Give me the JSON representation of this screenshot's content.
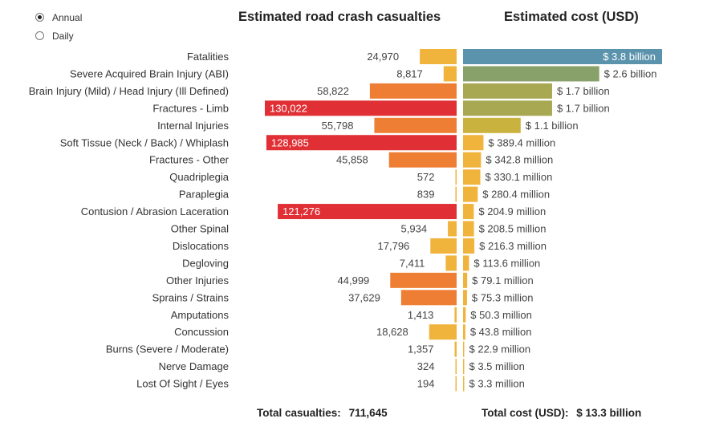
{
  "controls": {
    "period_options": [
      {
        "label": "Annual",
        "selected": true
      },
      {
        "label": "Daily",
        "selected": false
      }
    ]
  },
  "titles": {
    "casualties": "Estimated road crash casualties",
    "cost": "Estimated cost (USD)"
  },
  "totals": {
    "casualties_label": "Total casualties:",
    "casualties_value": "711,645",
    "cost_label": "Total cost (USD):",
    "cost_value": "$ 13.3 billion"
  },
  "colors": {
    "casualty_low": "#f0b33c",
    "casualty_mid": "#ee7e34",
    "casualty_high": "#e03035",
    "cost_top": "#5b93ad",
    "cost_second": "#88a06a",
    "cost_third": "#a8a752",
    "cost_mid": "#c9b23e",
    "cost_low": "#f0b33c"
  },
  "chart_data": [
    {
      "type": "bar",
      "orientation": "horizontal",
      "title": "Estimated road crash casualties",
      "categories": [
        "Fatalities",
        "Severe Acquired Brain Injury (ABI)",
        "Brain Injury (Mild) / Head Injury (Ill Defined)",
        "Fractures - Limb",
        "Internal Injuries",
        "Soft Tissue (Neck / Back) / Whiplash",
        "Fractures - Other",
        "Quadriplegia",
        "Paraplegia",
        "Contusion / Abrasion Laceration",
        "Other Spinal",
        "Dislocations",
        "Degloving",
        "Other Injuries",
        "Sprains / Strains",
        "Amputations",
        "Concussion",
        "Burns (Severe / Moderate)",
        "Nerve Damage",
        "Lost Of Sight / Eyes"
      ],
      "values": [
        24970,
        8817,
        58822,
        130022,
        55798,
        128985,
        45858,
        572,
        839,
        121276,
        5934,
        17796,
        7411,
        44999,
        37629,
        1413,
        18628,
        1357,
        324,
        194
      ],
      "labels": [
        "24,970",
        "8,817",
        "58,822",
        "130,022",
        "55,798",
        "128,985",
        "45,858",
        "572",
        "839",
        "121,276",
        "5,934",
        "17,796",
        "7,411",
        "44,999",
        "37,629",
        "1,413",
        "18,628",
        "1,357",
        "324",
        "194"
      ]
    },
    {
      "type": "bar",
      "orientation": "horizontal",
      "title": "Estimated cost (USD)",
      "values_usd_million": [
        3800,
        2600,
        1700,
        1700,
        1100,
        389.4,
        342.8,
        330.1,
        280.4,
        204.9,
        208.5,
        216.3,
        113.6,
        79.1,
        75.3,
        50.3,
        43.8,
        22.9,
        3.5,
        3.3
      ],
      "labels": [
        "$ 3.8 billion",
        "$ 2.6 billion",
        "$ 1.7 billion",
        "$ 1.7 billion",
        "$ 1.1 billion",
        "$ 389.4 million",
        "$ 342.8 million",
        "$ 330.1 million",
        "$ 280.4 million",
        "$ 204.9 million",
        "$ 208.5 million",
        "$ 216.3 million",
        "$ 113.6 million",
        "$ 79.1 million",
        "$ 75.3 million",
        "$ 50.3 million",
        "$ 43.8 million",
        "$ 22.9 million",
        "$ 3.5 million",
        "$ 3.3 million"
      ]
    }
  ]
}
